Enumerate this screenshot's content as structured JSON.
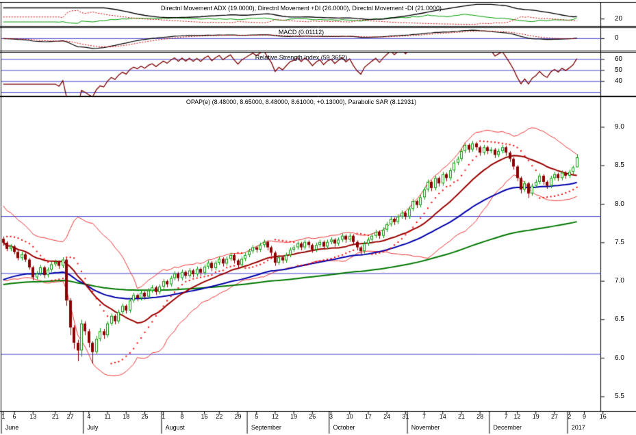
{
  "panels": {
    "dmi": {
      "title": "Directnl Movement ADX (19.0000), Directnl Movement +DI (26.0000), Directnl Movement -DI (21.0000)",
      "axis_labels": [
        {
          "label": "20",
          "value": 20
        }
      ]
    },
    "macd": {
      "title": "MACD (0.01112)",
      "axis_labels": [
        {
          "label": "0",
          "value": 0
        }
      ]
    },
    "rsi": {
      "title": "Relative Strength Index (59.3652)",
      "axis_labels": [
        {
          "label": "60",
          "value": 60
        },
        {
          "label": "50",
          "value": 50
        },
        {
          "label": "40",
          "value": 40
        }
      ],
      "hlines": [
        60,
        50,
        40,
        30
      ]
    },
    "price": {
      "title": "OPAP(e) (8.48000, 8.65000, 8.48000, 8.61000, +0.13000), Parabolic SAR (8.12931)",
      "hlines": [
        7.84,
        7.1,
        6.05
      ]
    }
  },
  "chart_data": {
    "type": "candlestick",
    "title": "OPAP(e) daily candlestick chart with Bollinger Bands, 20/50/150 moving averages, Parabolic SAR and DMI/ADX, MACD, RSI indicator panels",
    "symbol": "OPAP(e)",
    "last_bar": {
      "open": 8.48,
      "high": 8.65,
      "low": 8.48,
      "close": 8.61,
      "change": "+0.13000"
    },
    "indicator_readings": {
      "adx": 19.0,
      "plus_di": 26.0,
      "minus_di": 21.0,
      "macd": 0.01112,
      "rsi": 59.3652,
      "parabolic_sar": 8.12931
    },
    "y_axis": {
      "labels": [
        "9.0",
        "8.5",
        "8.0",
        "7.5",
        "7.0",
        "6.5",
        "6.0",
        "5.5"
      ]
    },
    "total_slots": 161,
    "x_ticks": [
      {
        "l": "1",
        "i": 0
      },
      {
        "l": "6",
        "i": 3
      },
      {
        "l": "13",
        "i": 8
      },
      {
        "l": "21",
        "i": 14
      },
      {
        "l": "27",
        "i": 18
      },
      {
        "l": "4",
        "i": 23
      },
      {
        "l": "11",
        "i": 28
      },
      {
        "l": "18",
        "i": 33
      },
      {
        "l": "25",
        "i": 38
      },
      {
        "l": "1",
        "i": 43
      },
      {
        "l": "8",
        "i": 48
      },
      {
        "l": "16",
        "i": 54
      },
      {
        "l": "22",
        "i": 58
      },
      {
        "l": "29",
        "i": 63
      },
      {
        "l": "5",
        "i": 68
      },
      {
        "l": "12",
        "i": 73
      },
      {
        "l": "19",
        "i": 78
      },
      {
        "l": "26",
        "i": 83
      },
      {
        "l": "3",
        "i": 88
      },
      {
        "l": "10",
        "i": 93
      },
      {
        "l": "17",
        "i": 98
      },
      {
        "l": "24",
        "i": 103
      },
      {
        "l": "31",
        "i": 108
      },
      {
        "l": "7",
        "i": 113
      },
      {
        "l": "14",
        "i": 118
      },
      {
        "l": "21",
        "i": 123
      },
      {
        "l": "28",
        "i": 128
      },
      {
        "l": "7",
        "i": 135
      },
      {
        "l": "12",
        "i": 138
      },
      {
        "l": "19",
        "i": 143
      },
      {
        "l": "27",
        "i": 148
      },
      {
        "l": "2",
        "i": 152
      },
      {
        "l": "9",
        "i": 156
      },
      {
        "l": "16",
        "i": 161
      }
    ],
    "months": [
      {
        "l": "June",
        "i": 0
      },
      {
        "l": "July",
        "i": 22
      },
      {
        "l": "August",
        "i": 43
      },
      {
        "l": "September",
        "i": 66
      },
      {
        "l": "October",
        "i": 88
      },
      {
        "l": "November",
        "i": 109
      },
      {
        "l": "December",
        "i": 131
      },
      {
        "l": "2017",
        "i": 152
      }
    ],
    "ohlc": [
      [
        7.55,
        7.58,
        7.46,
        7.5
      ],
      [
        7.5,
        7.52,
        7.39,
        7.42
      ],
      [
        7.42,
        7.48,
        7.39,
        7.45
      ],
      [
        7.45,
        7.47,
        7.35,
        7.38
      ],
      [
        7.38,
        7.4,
        7.27,
        7.3
      ],
      [
        7.3,
        7.38,
        7.27,
        7.35
      ],
      [
        7.35,
        7.37,
        7.25,
        7.28
      ],
      [
        7.28,
        7.3,
        7.15,
        7.18
      ],
      [
        7.18,
        7.2,
        7.01,
        7.05
      ],
      [
        7.05,
        7.13,
        7.02,
        7.1
      ],
      [
        7.1,
        7.21,
        7.07,
        7.18
      ],
      [
        7.18,
        7.2,
        7.04,
        7.08
      ],
      [
        7.08,
        7.18,
        7.05,
        7.15
      ],
      [
        7.15,
        7.25,
        7.12,
        7.22
      ],
      [
        7.22,
        7.28,
        7.19,
        7.25
      ],
      [
        7.25,
        7.27,
        7.16,
        7.2
      ],
      [
        7.2,
        7.31,
        7.17,
        7.28
      ],
      [
        7.28,
        7.3,
        6.68,
        6.75
      ],
      [
        6.75,
        6.78,
        6.3,
        6.4
      ],
      [
        6.4,
        6.43,
        6.12,
        6.2
      ],
      [
        6.2,
        6.24,
        5.96,
        6.1
      ],
      [
        6.1,
        6.5,
        6.02,
        6.45
      ],
      [
        6.45,
        6.48,
        6.3,
        6.35
      ],
      [
        6.35,
        6.38,
        6.14,
        6.2
      ],
      [
        6.2,
        6.22,
        5.93,
        6.08
      ],
      [
        6.08,
        6.29,
        6.05,
        6.25
      ],
      [
        6.25,
        6.39,
        6.22,
        6.35
      ],
      [
        6.35,
        6.38,
        6.25,
        6.3
      ],
      [
        6.3,
        6.48,
        6.27,
        6.45
      ],
      [
        6.45,
        6.58,
        6.42,
        6.55
      ],
      [
        6.55,
        6.57,
        6.44,
        6.48
      ],
      [
        6.48,
        6.63,
        6.45,
        6.6
      ],
      [
        6.6,
        6.71,
        6.57,
        6.68
      ],
      [
        6.68,
        6.7,
        6.58,
        6.62
      ],
      [
        6.62,
        6.78,
        6.59,
        6.75
      ],
      [
        6.75,
        6.85,
        6.72,
        6.82
      ],
      [
        6.82,
        6.84,
        6.74,
        6.78
      ],
      [
        6.78,
        6.88,
        6.75,
        6.85
      ],
      [
        6.85,
        6.87,
        6.76,
        6.8
      ],
      [
        6.8,
        6.91,
        6.77,
        6.88
      ],
      [
        6.88,
        6.95,
        6.85,
        6.92
      ],
      [
        6.92,
        6.94,
        6.82,
        6.86
      ],
      [
        6.86,
        6.96,
        6.83,
        6.93
      ],
      [
        6.93,
        7.03,
        6.9,
        7
      ],
      [
        7,
        7.02,
        6.92,
        6.96
      ],
      [
        6.96,
        7.07,
        6.93,
        7.04
      ],
      [
        7.04,
        7.13,
        7.01,
        7.1
      ],
      [
        7.1,
        7.12,
        7,
        7.04
      ],
      [
        7.04,
        7.15,
        7.01,
        7.12
      ],
      [
        7.12,
        7.14,
        7.03,
        7.07
      ],
      [
        7.07,
        7.17,
        7.04,
        7.14
      ],
      [
        7.14,
        7.16,
        7.05,
        7.09
      ],
      [
        7.09,
        7.19,
        7.06,
        7.16
      ],
      [
        7.16,
        7.18,
        7.07,
        7.11
      ],
      [
        7.11,
        7.22,
        7.08,
        7.19
      ],
      [
        7.19,
        7.27,
        7.16,
        7.24
      ],
      [
        7.24,
        7.26,
        7.13,
        7.17
      ],
      [
        7.17,
        7.27,
        7.14,
        7.24
      ],
      [
        7.24,
        7.32,
        7.21,
        7.29
      ],
      [
        7.29,
        7.31,
        7.19,
        7.23
      ],
      [
        7.23,
        7.32,
        7.2,
        7.29
      ],
      [
        7.29,
        7.37,
        7.26,
        7.34
      ],
      [
        7.34,
        7.36,
        7.23,
        7.27
      ],
      [
        7.27,
        7.29,
        7.17,
        7.21
      ],
      [
        7.21,
        7.32,
        7.18,
        7.29
      ],
      [
        7.29,
        7.37,
        7.26,
        7.34
      ],
      [
        7.34,
        7.42,
        7.31,
        7.39
      ],
      [
        7.39,
        7.47,
        7.36,
        7.44
      ],
      [
        7.44,
        7.46,
        7.37,
        7.41
      ],
      [
        7.41,
        7.5,
        7.38,
        7.47
      ],
      [
        7.47,
        7.54,
        7.44,
        7.51
      ],
      [
        7.51,
        7.53,
        7.4,
        7.44
      ],
      [
        7.44,
        7.46,
        7.33,
        7.37
      ],
      [
        7.37,
        7.39,
        7.2,
        7.24
      ],
      [
        7.24,
        7.34,
        7.21,
        7.31
      ],
      [
        7.31,
        7.33,
        7.23,
        7.27
      ],
      [
        7.27,
        7.37,
        7.24,
        7.34
      ],
      [
        7.34,
        7.44,
        7.31,
        7.41
      ],
      [
        7.41,
        7.47,
        7.38,
        7.44
      ],
      [
        7.44,
        7.52,
        7.41,
        7.49
      ],
      [
        7.49,
        7.51,
        7.4,
        7.44
      ],
      [
        7.44,
        7.54,
        7.41,
        7.51
      ],
      [
        7.51,
        7.53,
        7.43,
        7.47
      ],
      [
        7.47,
        7.49,
        7.37,
        7.41
      ],
      [
        7.41,
        7.5,
        7.38,
        7.47
      ],
      [
        7.47,
        7.54,
        7.44,
        7.51
      ],
      [
        7.51,
        7.53,
        7.41,
        7.45
      ],
      [
        7.45,
        7.54,
        7.42,
        7.51
      ],
      [
        7.51,
        7.57,
        7.48,
        7.54
      ],
      [
        7.54,
        7.56,
        7.45,
        7.49
      ],
      [
        7.49,
        7.57,
        7.46,
        7.54
      ],
      [
        7.54,
        7.62,
        7.51,
        7.59
      ],
      [
        7.59,
        7.61,
        7.5,
        7.54
      ],
      [
        7.54,
        7.62,
        7.51,
        7.59
      ],
      [
        7.59,
        7.61,
        7.47,
        7.51
      ],
      [
        7.51,
        7.53,
        7.4,
        7.44
      ],
      [
        7.44,
        7.46,
        7.35,
        7.39
      ],
      [
        7.39,
        7.52,
        7.36,
        7.49
      ],
      [
        7.49,
        7.57,
        7.46,
        7.54
      ],
      [
        7.54,
        7.62,
        7.51,
        7.59
      ],
      [
        7.59,
        7.67,
        7.56,
        7.64
      ],
      [
        7.64,
        7.66,
        7.55,
        7.59
      ],
      [
        7.59,
        7.7,
        7.56,
        7.67
      ],
      [
        7.67,
        7.77,
        7.64,
        7.74
      ],
      [
        7.74,
        7.84,
        7.71,
        7.81
      ],
      [
        7.81,
        7.83,
        7.73,
        7.77
      ],
      [
        7.77,
        7.87,
        7.74,
        7.84
      ],
      [
        7.84,
        7.92,
        7.81,
        7.89
      ],
      [
        7.89,
        7.91,
        7.8,
        7.84
      ],
      [
        7.84,
        7.97,
        7.81,
        7.94
      ],
      [
        7.94,
        8.07,
        7.91,
        8.04
      ],
      [
        8.04,
        8.06,
        7.95,
        7.99
      ],
      [
        7.99,
        8.12,
        7.96,
        8.09
      ],
      [
        8.09,
        8.22,
        8.06,
        8.19
      ],
      [
        8.19,
        8.32,
        8.16,
        8.29
      ],
      [
        8.29,
        8.31,
        8.17,
        8.21
      ],
      [
        8.21,
        8.37,
        8.18,
        8.34
      ],
      [
        8.34,
        8.36,
        8.23,
        8.27
      ],
      [
        8.27,
        8.42,
        8.24,
        8.39
      ],
      [
        8.39,
        8.41,
        8.3,
        8.34
      ],
      [
        8.34,
        8.47,
        8.31,
        8.44
      ],
      [
        8.44,
        8.57,
        8.41,
        8.54
      ],
      [
        8.54,
        8.62,
        8.51,
        8.59
      ],
      [
        8.59,
        8.72,
        8.56,
        8.69
      ],
      [
        8.69,
        8.8,
        8.66,
        8.77
      ],
      [
        8.77,
        8.79,
        8.67,
        8.71
      ],
      [
        8.71,
        8.82,
        8.68,
        8.79
      ],
      [
        8.79,
        8.81,
        8.7,
        8.74
      ],
      [
        8.74,
        8.76,
        8.63,
        8.67
      ],
      [
        8.67,
        8.77,
        8.64,
        8.74
      ],
      [
        8.74,
        8.76,
        8.65,
        8.69
      ],
      [
        8.69,
        8.74,
        8.66,
        8.71
      ],
      [
        8.71,
        8.73,
        8.6,
        8.64
      ],
      [
        8.64,
        8.72,
        8.61,
        8.69
      ],
      [
        8.69,
        8.77,
        8.66,
        8.74
      ],
      [
        8.74,
        8.76,
        8.63,
        8.67
      ],
      [
        8.67,
        8.69,
        8.55,
        8.59
      ],
      [
        8.59,
        8.61,
        8.45,
        8.49
      ],
      [
        8.49,
        8.51,
        8.3,
        8.34
      ],
      [
        8.34,
        8.36,
        8.14,
        8.19
      ],
      [
        8.19,
        8.3,
        8.16,
        8.27
      ],
      [
        8.27,
        8.29,
        8.08,
        8.14
      ],
      [
        8.14,
        8.27,
        8.11,
        8.24
      ],
      [
        8.24,
        8.32,
        8.21,
        8.29
      ],
      [
        8.29,
        8.4,
        8.26,
        8.37
      ],
      [
        8.37,
        8.39,
        8.25,
        8.29
      ],
      [
        8.29,
        8.31,
        8.2,
        8.24
      ],
      [
        8.24,
        8.37,
        8.21,
        8.34
      ],
      [
        8.34,
        8.42,
        8.31,
        8.39
      ],
      [
        8.39,
        8.41,
        8.3,
        8.34
      ],
      [
        8.34,
        8.44,
        8.31,
        8.41
      ],
      [
        8.41,
        8.43,
        8.33,
        8.37
      ],
      [
        8.37,
        8.45,
        8.34,
        8.42
      ],
      [
        8.42,
        8.5,
        8.39,
        8.48
      ],
      [
        8.48,
        8.65,
        8.48,
        8.61
      ]
    ],
    "indicators": {
      "bollinger": {
        "period": 20,
        "stdev": 2
      },
      "ma_fast": {
        "type": "sma",
        "period": 20
      },
      "ma_mid": {
        "type": "ema",
        "period": 50,
        "seed": 7.0
      },
      "ma_slow": {
        "type": "ema",
        "period": 150,
        "seed": 6.95
      },
      "psar": {
        "step": 0.02,
        "max": 0.2
      },
      "rsi": {
        "period": 14
      },
      "macd": {
        "fast": 12,
        "slow": 26,
        "signal": 9
      },
      "dmi": {
        "period": 14
      }
    },
    "colors": {
      "background": "#ffffff",
      "panel_border": "#000000",
      "grid_blue": "#4444cc",
      "candle_up": "#009900",
      "candle_up_fill": "#ffffff",
      "candle_down": "#8b0000",
      "bollinger": "#ee3333",
      "ma_fast": "#990000",
      "ma_mid": "#0000aa",
      "ma_slow": "#007700",
      "psar": "#ff0000",
      "rsi_line": "#7a0000",
      "macd_line": "#000000",
      "macd_signal": "#cc0000",
      "adx_line": "#000000",
      "plus_di": "#009900",
      "minus_di": "#cc0000",
      "axis_text": "#000000"
    }
  }
}
